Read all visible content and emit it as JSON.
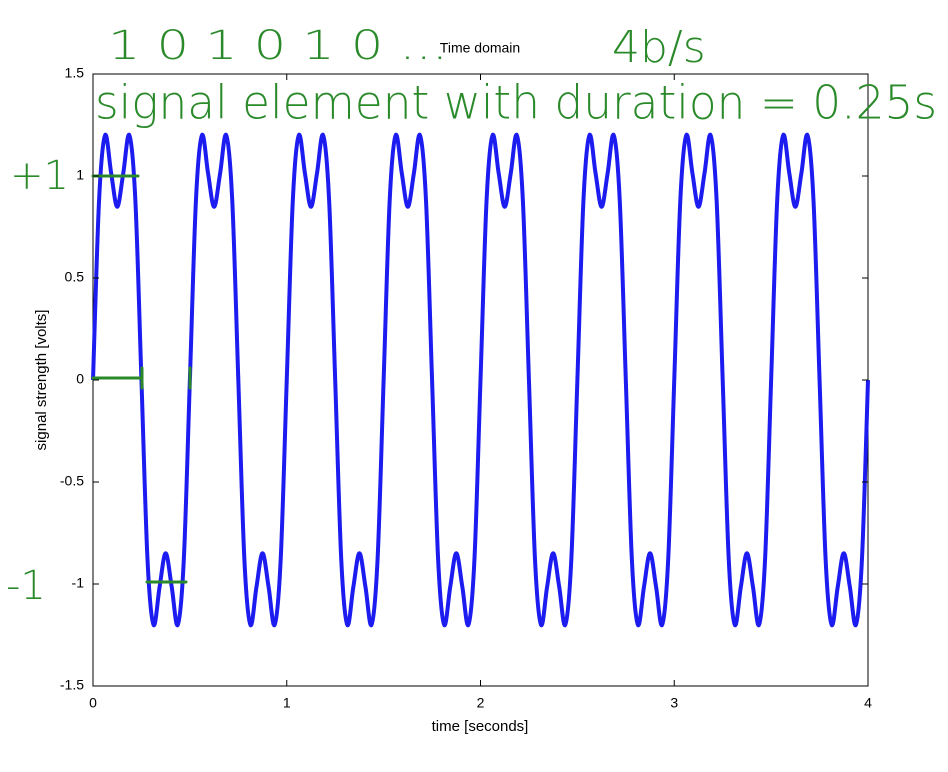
{
  "chart_data": {
    "type": "line",
    "title": "Time domain",
    "x_label": "time [seconds]",
    "y_label": "signal strength [volts]",
    "annotations": [
      "1 0 1 0 1 0 ...",
      "4b/s",
      "signal element with duration = 0.25s",
      "+1",
      "-1"
    ],
    "xlim": [
      0,
      4
    ],
    "ylim": [
      -1.5,
      1.5
    ],
    "xticks": [
      0,
      1,
      2,
      3,
      4
    ],
    "yticks": [
      -1.5,
      -1,
      -0.5,
      0,
      0.5,
      1,
      1.5
    ],
    "x": [
      0,
      0.03125,
      0.0625,
      0.09375,
      0.125,
      0.15625,
      0.1875,
      0.21875,
      0.25,
      0.28125,
      0.3125,
      0.34375,
      0.375,
      0.40625,
      0.4375,
      0.46875,
      0.5,
      0.53125,
      0.5625,
      0.59375,
      0.625,
      0.65625,
      0.6875,
      0.71875,
      0.75,
      0.78125,
      0.8125,
      0.84375,
      0.875,
      0.90625,
      0.9375,
      0.96875,
      1,
      1.03125,
      1.0625,
      1.09375,
      1.125,
      1.15625,
      1.1875,
      1.21875,
      1.25,
      1.28125,
      1.3125,
      1.34375,
      1.375,
      1.40625,
      1.4375,
      1.46875,
      1.5,
      1.53125,
      1.5625,
      1.59375,
      1.625,
      1.65625,
      1.6875,
      1.71875,
      1.75,
      1.78125,
      1.8125,
      1.84375,
      1.875,
      1.90625,
      1.9375,
      1.96875,
      2,
      2.03125,
      2.0625,
      2.09375,
      2.125,
      2.15625,
      2.1875,
      2.21875,
      2.25,
      2.28125,
      2.3125,
      2.34375,
      2.375,
      2.40625,
      2.4375,
      2.46875,
      2.5,
      2.53125,
      2.5625,
      2.59375,
      2.625,
      2.65625,
      2.6875,
      2.71875,
      2.75,
      2.78125,
      2.8125,
      2.84375,
      2.875,
      2.90625,
      2.9375,
      2.96875,
      3,
      3.03125,
      3.0625,
      3.09375,
      3.125,
      3.15625,
      3.1875,
      3.21875,
      3.25,
      3.28125,
      3.3125,
      3.34375,
      3.375,
      3.40625,
      3.4375,
      3.46875,
      3.5,
      3.53125,
      3.5625,
      3.59375,
      3.625,
      3.65625,
      3.6875,
      3.71875,
      3.75,
      3.78125,
      3.8125,
      3.84375,
      3.875,
      3.90625,
      3.9375,
      3.96875,
      4
    ],
    "series": [
      {
        "color": "#1c1cf0",
        "values": [
          0,
          0.879,
          1.2,
          1.014,
          0.849,
          1.014,
          1.2,
          0.879,
          0,
          -0.879,
          -1.2,
          -1.014,
          -0.849,
          -1.014,
          -1.2,
          -0.879,
          0,
          0.879,
          1.2,
          1.014,
          0.849,
          1.014,
          1.2,
          0.879,
          0,
          -0.879,
          -1.2,
          -1.014,
          -0.849,
          -1.014,
          -1.2,
          -0.879,
          0,
          0.879,
          1.2,
          1.014,
          0.849,
          1.014,
          1.2,
          0.879,
          0,
          -0.879,
          -1.2,
          -1.014,
          -0.849,
          -1.014,
          -1.2,
          -0.879,
          0,
          0.879,
          1.2,
          1.014,
          0.849,
          1.014,
          1.2,
          0.879,
          0,
          -0.879,
          -1.2,
          -1.014,
          -0.849,
          -1.014,
          -1.2,
          -0.879,
          0,
          0.879,
          1.2,
          1.014,
          0.849,
          1.014,
          1.2,
          0.879,
          0,
          -0.879,
          -1.2,
          -1.014,
          -0.849,
          -1.014,
          -1.2,
          -0.879,
          0,
          0.879,
          1.2,
          1.014,
          0.849,
          1.014,
          1.2,
          0.879,
          0,
          -0.879,
          -1.2,
          -1.014,
          -0.849,
          -1.014,
          -1.2,
          -0.879,
          0,
          0.879,
          1.2,
          1.014,
          0.849,
          1.014,
          1.2,
          0.879,
          0,
          -0.879,
          -1.2,
          -1.014,
          -0.849,
          -1.014,
          -1.2,
          -0.879,
          0,
          0.879,
          1.2,
          1.014,
          0.849,
          1.014,
          1.2,
          0.879,
          0,
          -0.879,
          -1.2,
          -1.014,
          -0.849,
          -1.014,
          -1.2,
          -0.879,
          0
        ]
      }
    ]
  }
}
